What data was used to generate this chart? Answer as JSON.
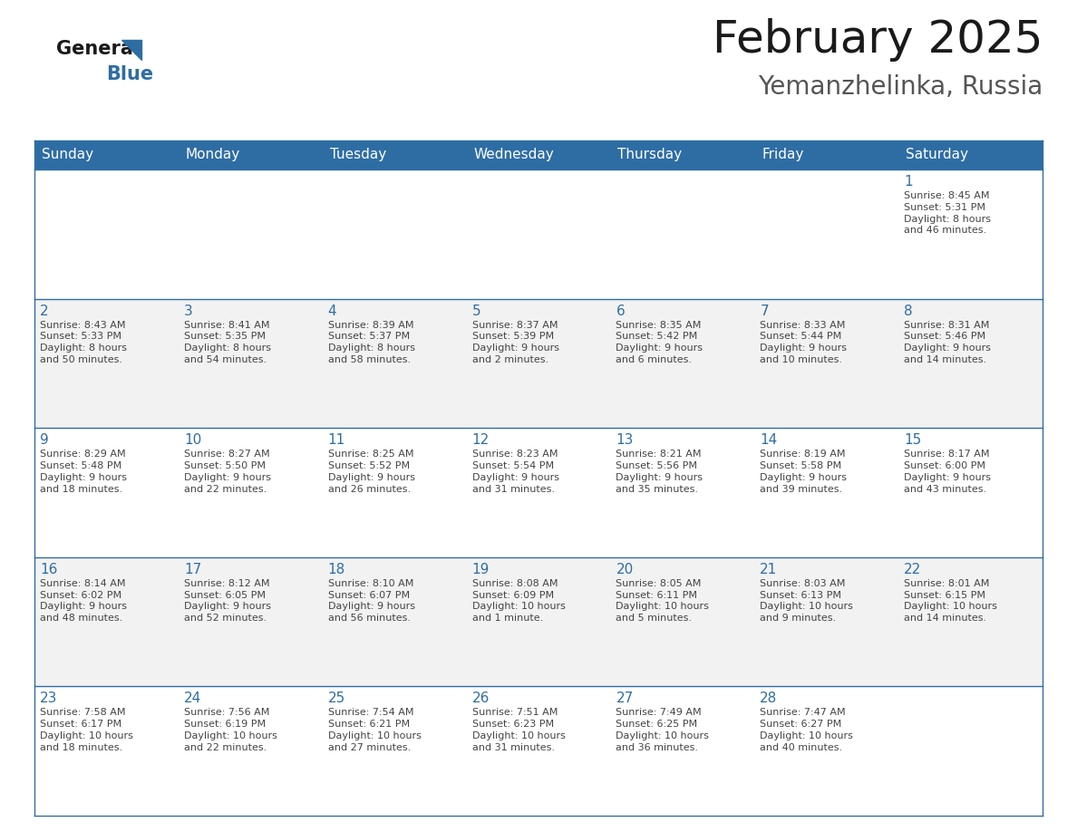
{
  "title": "February 2025",
  "subtitle": "Yemanzhelinka, Russia",
  "header_bg": "#2E6DA4",
  "header_text_color": "#FFFFFF",
  "cell_bg_odd": "#F2F2F2",
  "cell_bg_even": "#FFFFFF",
  "cell_border_color": "#2E6DA4",
  "day_text_color": "#2E6DA4",
  "info_text_color": "#444444",
  "days_of_week": [
    "Sunday",
    "Monday",
    "Tuesday",
    "Wednesday",
    "Thursday",
    "Friday",
    "Saturday"
  ],
  "weeks": [
    [
      {
        "day": "",
        "info": ""
      },
      {
        "day": "",
        "info": ""
      },
      {
        "day": "",
        "info": ""
      },
      {
        "day": "",
        "info": ""
      },
      {
        "day": "",
        "info": ""
      },
      {
        "day": "",
        "info": ""
      },
      {
        "day": "1",
        "info": "Sunrise: 8:45 AM\nSunset: 5:31 PM\nDaylight: 8 hours\nand 46 minutes."
      }
    ],
    [
      {
        "day": "2",
        "info": "Sunrise: 8:43 AM\nSunset: 5:33 PM\nDaylight: 8 hours\nand 50 minutes."
      },
      {
        "day": "3",
        "info": "Sunrise: 8:41 AM\nSunset: 5:35 PM\nDaylight: 8 hours\nand 54 minutes."
      },
      {
        "day": "4",
        "info": "Sunrise: 8:39 AM\nSunset: 5:37 PM\nDaylight: 8 hours\nand 58 minutes."
      },
      {
        "day": "5",
        "info": "Sunrise: 8:37 AM\nSunset: 5:39 PM\nDaylight: 9 hours\nand 2 minutes."
      },
      {
        "day": "6",
        "info": "Sunrise: 8:35 AM\nSunset: 5:42 PM\nDaylight: 9 hours\nand 6 minutes."
      },
      {
        "day": "7",
        "info": "Sunrise: 8:33 AM\nSunset: 5:44 PM\nDaylight: 9 hours\nand 10 minutes."
      },
      {
        "day": "8",
        "info": "Sunrise: 8:31 AM\nSunset: 5:46 PM\nDaylight: 9 hours\nand 14 minutes."
      }
    ],
    [
      {
        "day": "9",
        "info": "Sunrise: 8:29 AM\nSunset: 5:48 PM\nDaylight: 9 hours\nand 18 minutes."
      },
      {
        "day": "10",
        "info": "Sunrise: 8:27 AM\nSunset: 5:50 PM\nDaylight: 9 hours\nand 22 minutes."
      },
      {
        "day": "11",
        "info": "Sunrise: 8:25 AM\nSunset: 5:52 PM\nDaylight: 9 hours\nand 26 minutes."
      },
      {
        "day": "12",
        "info": "Sunrise: 8:23 AM\nSunset: 5:54 PM\nDaylight: 9 hours\nand 31 minutes."
      },
      {
        "day": "13",
        "info": "Sunrise: 8:21 AM\nSunset: 5:56 PM\nDaylight: 9 hours\nand 35 minutes."
      },
      {
        "day": "14",
        "info": "Sunrise: 8:19 AM\nSunset: 5:58 PM\nDaylight: 9 hours\nand 39 minutes."
      },
      {
        "day": "15",
        "info": "Sunrise: 8:17 AM\nSunset: 6:00 PM\nDaylight: 9 hours\nand 43 minutes."
      }
    ],
    [
      {
        "day": "16",
        "info": "Sunrise: 8:14 AM\nSunset: 6:02 PM\nDaylight: 9 hours\nand 48 minutes."
      },
      {
        "day": "17",
        "info": "Sunrise: 8:12 AM\nSunset: 6:05 PM\nDaylight: 9 hours\nand 52 minutes."
      },
      {
        "day": "18",
        "info": "Sunrise: 8:10 AM\nSunset: 6:07 PM\nDaylight: 9 hours\nand 56 minutes."
      },
      {
        "day": "19",
        "info": "Sunrise: 8:08 AM\nSunset: 6:09 PM\nDaylight: 10 hours\nand 1 minute."
      },
      {
        "day": "20",
        "info": "Sunrise: 8:05 AM\nSunset: 6:11 PM\nDaylight: 10 hours\nand 5 minutes."
      },
      {
        "day": "21",
        "info": "Sunrise: 8:03 AM\nSunset: 6:13 PM\nDaylight: 10 hours\nand 9 minutes."
      },
      {
        "day": "22",
        "info": "Sunrise: 8:01 AM\nSunset: 6:15 PM\nDaylight: 10 hours\nand 14 minutes."
      }
    ],
    [
      {
        "day": "23",
        "info": "Sunrise: 7:58 AM\nSunset: 6:17 PM\nDaylight: 10 hours\nand 18 minutes."
      },
      {
        "day": "24",
        "info": "Sunrise: 7:56 AM\nSunset: 6:19 PM\nDaylight: 10 hours\nand 22 minutes."
      },
      {
        "day": "25",
        "info": "Sunrise: 7:54 AM\nSunset: 6:21 PM\nDaylight: 10 hours\nand 27 minutes."
      },
      {
        "day": "26",
        "info": "Sunrise: 7:51 AM\nSunset: 6:23 PM\nDaylight: 10 hours\nand 31 minutes."
      },
      {
        "day": "27",
        "info": "Sunrise: 7:49 AM\nSunset: 6:25 PM\nDaylight: 10 hours\nand 36 minutes."
      },
      {
        "day": "28",
        "info": "Sunrise: 7:47 AM\nSunset: 6:27 PM\nDaylight: 10 hours\nand 40 minutes."
      },
      {
        "day": "",
        "info": ""
      }
    ]
  ],
  "logo_general_color": "#1a1a1a",
  "logo_blue_color": "#2E6DA4",
  "logo_triangle_color": "#2E6DA4",
  "fig_width": 11.88,
  "fig_height": 9.18,
  "dpi": 100,
  "title_fontsize": 36,
  "subtitle_fontsize": 20,
  "header_fontsize": 11,
  "day_number_fontsize": 11,
  "info_fontsize": 8.0,
  "logo_fontsize": 15
}
